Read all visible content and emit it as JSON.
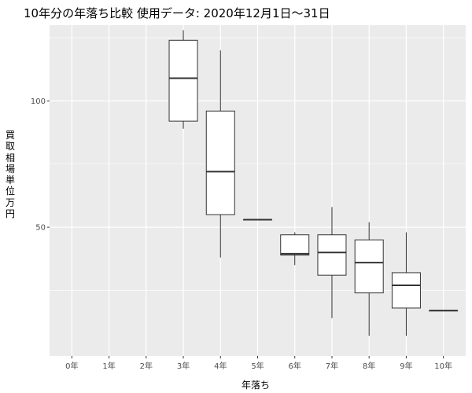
{
  "chart_data": {
    "type": "boxplot",
    "title": "10年分の年落ち比較 使用データ: 2020年12月1日～31日",
    "xlabel": "年落ち",
    "ylabel": "買取相場 単位 万円",
    "categories": [
      "0年",
      "1年",
      "2年",
      "3年",
      "4年",
      "5年",
      "6年",
      "7年",
      "8年",
      "9年",
      "10年"
    ],
    "boxes": [
      {
        "category": "0年",
        "min": null,
        "q1": null,
        "median": null,
        "q3": null,
        "max": null
      },
      {
        "category": "1年",
        "min": null,
        "q1": null,
        "median": null,
        "q3": null,
        "max": null
      },
      {
        "category": "2年",
        "min": null,
        "q1": null,
        "median": null,
        "q3": null,
        "max": null
      },
      {
        "category": "3年",
        "min": 89,
        "q1": 92,
        "median": 109,
        "q3": 124,
        "max": 128
      },
      {
        "category": "4年",
        "min": 38,
        "q1": 55,
        "median": 72,
        "q3": 96,
        "max": 120
      },
      {
        "category": "5年",
        "min": 53,
        "q1": 53,
        "median": 53,
        "q3": 53,
        "max": 53
      },
      {
        "category": "6年",
        "min": 35,
        "q1": 39,
        "median": 39.5,
        "q3": 47,
        "max": 48
      },
      {
        "category": "7年",
        "min": 14,
        "q1": 31,
        "median": 40,
        "q3": 47,
        "max": 58
      },
      {
        "category": "8年",
        "min": 7,
        "q1": 24,
        "median": 36,
        "q3": 45,
        "max": 52
      },
      {
        "category": "9年",
        "min": 7,
        "q1": 18,
        "median": 27,
        "q3": 32,
        "max": 48
      },
      {
        "category": "10年",
        "min": 17,
        "q1": 17,
        "median": 17,
        "q3": 17,
        "max": 17
      }
    ],
    "y_ticks": [
      50,
      100
    ],
    "ylim": [
      -1,
      130
    ],
    "grid": true,
    "colors": {
      "panel": "#ebebeb",
      "grid": "#ffffff",
      "box_fill": "#ffffff",
      "box_line": "#333333",
      "tick_text": "#4d4d4d"
    }
  }
}
